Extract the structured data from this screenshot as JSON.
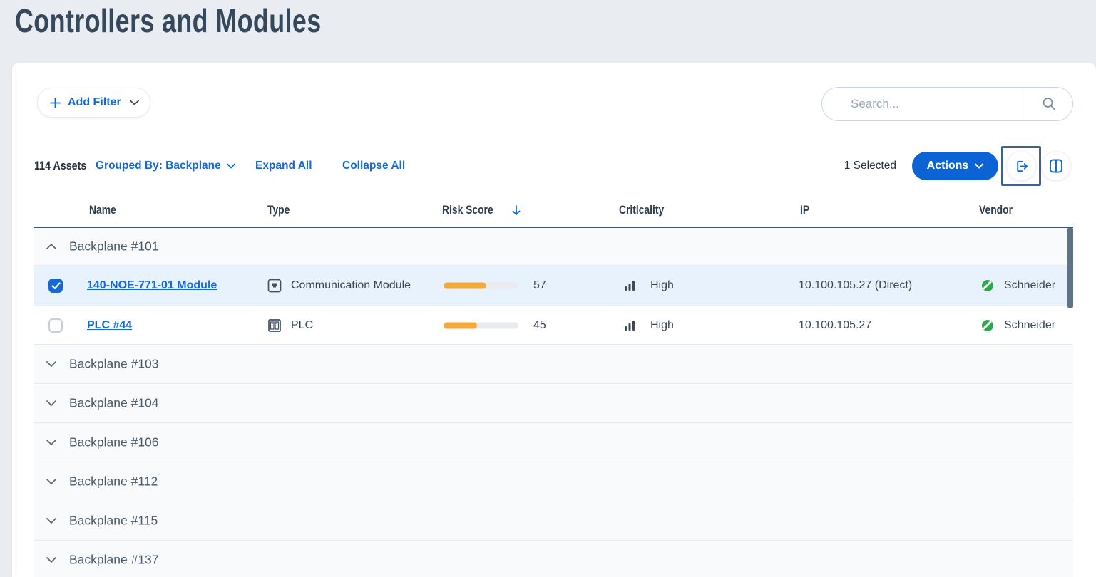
{
  "page": {
    "title": "Controllers and Modules"
  },
  "filters": {
    "add_filter_label": "Add Filter"
  },
  "search": {
    "placeholder": "Search..."
  },
  "controls": {
    "asset_count": "114 Assets",
    "grouped_by_label": "Grouped By: Backplane",
    "expand_all_label": "Expand All",
    "collapse_all_label": "Collapse All",
    "selected_count": "1 Selected",
    "actions_label": "Actions"
  },
  "table": {
    "columns": [
      "Name",
      "Type",
      "Risk Score",
      "Criticality",
      "IP",
      "Vendor"
    ],
    "sort": {
      "column": "Risk Score",
      "direction": "desc"
    },
    "groups": [
      {
        "label": "Backplane #101",
        "expanded": true,
        "rows": [
          {
            "selected": true,
            "name": "140-NOE-771-01 Module",
            "type": "Communication Module",
            "type_icon": "communication-module-icon",
            "risk_score": 57,
            "criticality": "High",
            "criticality_icon": "bar-chart-icon",
            "ip": "10.100.105.27 (Direct)",
            "vendor": "Schneider",
            "vendor_icon": "schneider-electric-icon"
          },
          {
            "selected": false,
            "name": "PLC #44",
            "type": "PLC",
            "type_icon": "plc-icon",
            "risk_score": 45,
            "criticality": "High",
            "criticality_icon": "bar-chart-icon",
            "ip": "10.100.105.27",
            "vendor": "Schneider",
            "vendor_icon": "schneider-electric-icon"
          }
        ]
      },
      {
        "label": "Backplane #103",
        "expanded": false
      },
      {
        "label": "Backplane #104",
        "expanded": false
      },
      {
        "label": "Backplane #106",
        "expanded": false
      },
      {
        "label": "Backplane #112",
        "expanded": false
      },
      {
        "label": "Backplane #115",
        "expanded": false
      },
      {
        "label": "Backplane #137",
        "expanded": false
      }
    ]
  },
  "colors": {
    "accent_blue": "#1568d8",
    "actions_button_bg": "#0c63d3",
    "risk_bar_fill": "#f3a93c",
    "selected_row_bg": "#e8f2fd",
    "highlight_box": "#44618c",
    "vendor_icon_green": "#2ba84a",
    "title_text": "#35485c",
    "page_background": "#e9edf1"
  }
}
